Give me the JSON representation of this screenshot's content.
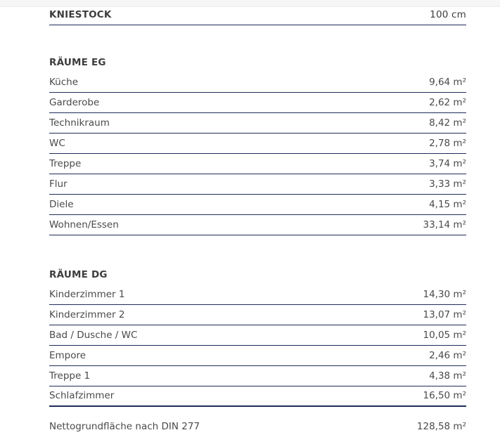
{
  "kniestock": {
    "label": "KNIESTOCK",
    "value": "100 cm"
  },
  "eg": {
    "title": "RÄUME EG",
    "rows": [
      {
        "label": "Küche",
        "value": "9,64 m²"
      },
      {
        "label": "Garderobe",
        "value": "2,62 m²"
      },
      {
        "label": "Technikraum",
        "value": "8,42 m²"
      },
      {
        "label": "WC",
        "value": "2,78 m²"
      },
      {
        "label": "Treppe",
        "value": "3,74 m²"
      },
      {
        "label": "Flur",
        "value": "3,33 m²"
      },
      {
        "label": "Diele",
        "value": "4,15 m²"
      },
      {
        "label": "Wohnen/Essen",
        "value": "33,14 m²"
      }
    ]
  },
  "dg": {
    "title": "RÄUME DG",
    "rows": [
      {
        "label": "Kinderzimmer 1",
        "value": "14,30 m²"
      },
      {
        "label": "Kinderzimmer 2",
        "value": "13,07 m²"
      },
      {
        "label": "Bad / Dusche / WC",
        "value": "10,05 m²"
      },
      {
        "label": "Empore",
        "value": "2,46 m²"
      },
      {
        "label": "Treppe 1",
        "value": "4,38 m²"
      },
      {
        "label": "Schlafzimmer",
        "value": "16,50 m²"
      }
    ]
  },
  "total": {
    "label": "Nettogrundfläche nach DIN 277",
    "value": "128,58 m²"
  },
  "colors": {
    "rule": "#1f2d5a",
    "text": "#4a4a4a"
  }
}
